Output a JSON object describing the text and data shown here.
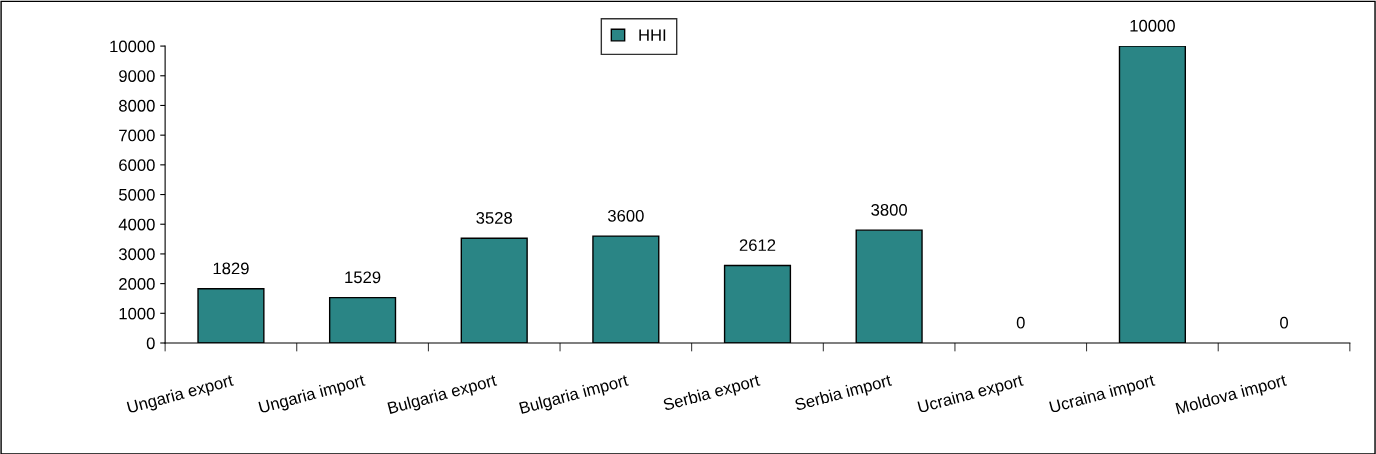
{
  "chart_data": {
    "type": "bar",
    "categories": [
      "Ungaria export",
      "Ungaria import",
      "Bulgaria export",
      "Bulgaria import",
      "Serbia export",
      "Serbia import",
      "Ucraina export",
      "Ucraina import",
      "Moldova import"
    ],
    "series": [
      {
        "name": "HHI",
        "color": "#2a8585",
        "values": [
          1829,
          1529,
          3528,
          3600,
          2612,
          3800,
          0,
          10000,
          0
        ]
      }
    ],
    "ylim": [
      0,
      10000
    ],
    "yticks": [
      0,
      1000,
      2000,
      3000,
      4000,
      5000,
      6000,
      7000,
      8000,
      9000,
      10000
    ],
    "data_labels": true,
    "legend": "top",
    "grid": false
  }
}
